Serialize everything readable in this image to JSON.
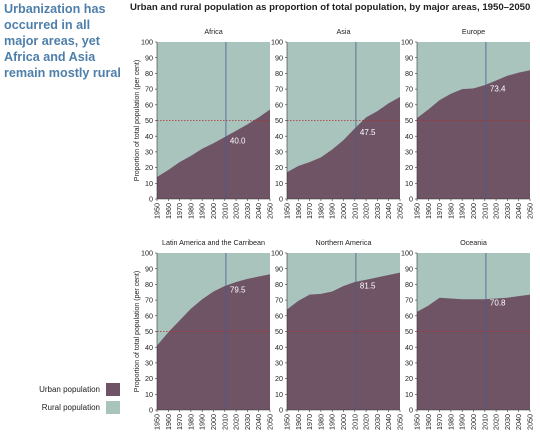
{
  "headline": "Urbanization has occurred in all major areas, yet Africa and Asia remain mostly rural",
  "main_title": "Urban and rural population as proportion of total population, by major areas, 1950–2050",
  "legend": {
    "urban": "Urban population",
    "rural": "Rural population"
  },
  "colors": {
    "urban": "#6f5466",
    "rural": "#a9c4bc",
    "marker": "#4a5a8f",
    "reference": "#b03030"
  },
  "chart_data": [
    {
      "type": "area",
      "title": "Africa",
      "ylabel": "Proportion of total population (per cent)",
      "x": [
        1950,
        1960,
        1970,
        1980,
        1990,
        2000,
        2010,
        2020,
        2030,
        2040,
        2050
      ],
      "series": [
        {
          "name": "Urban population",
          "values": [
            14,
            18.5,
            23.5,
            27.5,
            32,
            35.5,
            39.5,
            43.5,
            47.5,
            52,
            57
          ]
        }
      ],
      "ylim": [
        0,
        100
      ],
      "yticks": [
        0,
        10,
        20,
        30,
        40,
        50,
        60,
        70,
        80,
        90,
        100
      ],
      "marker_year": 2011,
      "annotation": "40.0",
      "reference_line": 50
    },
    {
      "type": "area",
      "title": "Asia",
      "ylabel": "Proportion of total population (per cent)",
      "x": [
        1950,
        1960,
        1970,
        1980,
        1990,
        2000,
        2010,
        2020,
        2030,
        2040,
        2050
      ],
      "series": [
        {
          "name": "Urban population",
          "values": [
            17,
            21,
            23.5,
            26.5,
            31.5,
            37.5,
            45,
            52,
            56,
            61,
            65
          ]
        }
      ],
      "ylim": [
        0,
        100
      ],
      "yticks": [
        0,
        10,
        20,
        30,
        40,
        50,
        60,
        70,
        80,
        90,
        100
      ],
      "marker_year": 2011,
      "annotation": "47.5",
      "reference_line": 50
    },
    {
      "type": "area",
      "title": "Europe",
      "ylabel": "Proportion of total population (per cent)",
      "x": [
        1950,
        1960,
        1970,
        1980,
        1990,
        2000,
        2010,
        2020,
        2030,
        2040,
        2050
      ],
      "series": [
        {
          "name": "Urban population",
          "values": [
            51.5,
            57,
            63,
            67,
            70,
            70.5,
            72.5,
            75.5,
            78.5,
            80.5,
            82
          ]
        }
      ],
      "ylim": [
        0,
        100
      ],
      "yticks": [
        0,
        10,
        20,
        30,
        40,
        50,
        60,
        70,
        80,
        90,
        100
      ],
      "marker_year": 2011,
      "annotation": "73.4",
      "reference_line": 50
    },
    {
      "type": "area",
      "title": "Latin America and the Carribean",
      "ylabel": "Proportion of total population (per cent)",
      "x": [
        1950,
        1960,
        1970,
        1980,
        1990,
        2000,
        2010,
        2020,
        2030,
        2040,
        2050
      ],
      "series": [
        {
          "name": "Urban population",
          "values": [
            41,
            49.5,
            57,
            64.5,
            70.5,
            75.5,
            79,
            81.5,
            83.5,
            85,
            86.5
          ]
        }
      ],
      "ylim": [
        0,
        100
      ],
      "yticks": [
        0,
        10,
        20,
        30,
        40,
        50,
        60,
        70,
        80,
        90,
        100
      ],
      "marker_year": 2011,
      "annotation": "79.5",
      "reference_line": 50
    },
    {
      "type": "area",
      "title": "Northern America",
      "ylabel": "Proportion of total population (per cent)",
      "x": [
        1950,
        1960,
        1970,
        1980,
        1990,
        2000,
        2010,
        2020,
        2030,
        2040,
        2050
      ],
      "series": [
        {
          "name": "Urban population",
          "values": [
            64,
            69.5,
            73.5,
            74,
            75.5,
            79,
            81.5,
            83,
            84.5,
            86,
            87.5
          ]
        }
      ],
      "ylim": [
        0,
        100
      ],
      "yticks": [
        0,
        10,
        20,
        30,
        40,
        50,
        60,
        70,
        80,
        90,
        100
      ],
      "marker_year": 2011,
      "annotation": "81.5",
      "reference_line": 50
    },
    {
      "type": "area",
      "title": "Oceania",
      "ylabel": "Proportion of total population (per cent)",
      "x": [
        1950,
        1960,
        1970,
        1980,
        1990,
        2000,
        2010,
        2020,
        2030,
        2040,
        2050
      ],
      "series": [
        {
          "name": "Urban population",
          "values": [
            62.5,
            66.5,
            71.5,
            71,
            70.5,
            70.5,
            70.5,
            71,
            71.5,
            72.5,
            73.5
          ]
        }
      ],
      "ylim": [
        0,
        100
      ],
      "yticks": [
        0,
        10,
        20,
        30,
        40,
        50,
        60,
        70,
        80,
        90,
        100
      ],
      "marker_year": 2011,
      "annotation": "70.8",
      "reference_line": 50
    }
  ]
}
